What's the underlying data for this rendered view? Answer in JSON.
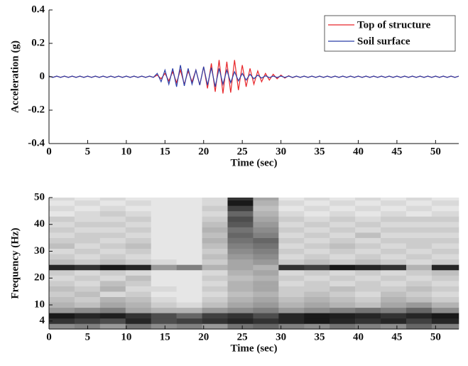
{
  "chart_data": [
    {
      "type": "line",
      "ylabel": "Acceleration (g)",
      "xlabel": "Time (sec)",
      "x": [
        0,
        0.5,
        1,
        1.5,
        2,
        2.5,
        3,
        3.5,
        4,
        4.5,
        5,
        5.5,
        6,
        6.5,
        7,
        7.5,
        8,
        8.5,
        9,
        9.5,
        10,
        10.5,
        11,
        11.5,
        12,
        12.5,
        13,
        13.5,
        14,
        14.5,
        15,
        15.5,
        16,
        16.5,
        17,
        17.5,
        18,
        18.5,
        19,
        19.5,
        20,
        20.5,
        21,
        21.5,
        22,
        22.5,
        23,
        23.5,
        24,
        24.5,
        25,
        25.5,
        26,
        26.5,
        27,
        27.5,
        28,
        28.5,
        29,
        29.5,
        30,
        30.5,
        31,
        31.5,
        32,
        32.5,
        33,
        33.5,
        34,
        34.5,
        35,
        35.5,
        36,
        36.5,
        37,
        37.5,
        38,
        38.5,
        39,
        39.5,
        40,
        40.5,
        41,
        41.5,
        42,
        42.5,
        43,
        43.5,
        44,
        44.5,
        45,
        45.5,
        46,
        46.5,
        47,
        47.5,
        48,
        48.5,
        49,
        49.5,
        50,
        50.5,
        51,
        51.5,
        52,
        52.5,
        53
      ],
      "series": [
        {
          "name": "Top of structure",
          "color": "#e8262a",
          "values": [
            0.003,
            -0.003,
            0.003,
            -0.003,
            0.003,
            -0.003,
            0.003,
            -0.003,
            0.003,
            -0.003,
            0.003,
            -0.003,
            0.003,
            -0.003,
            0.003,
            -0.003,
            0.003,
            -0.003,
            0.003,
            -0.003,
            0.003,
            -0.003,
            0.003,
            -0.003,
            0.003,
            -0.003,
            0.003,
            -0.003,
            0.01,
            -0.012,
            0.02,
            -0.025,
            0.03,
            -0.035,
            0.04,
            -0.045,
            0.035,
            -0.03,
            0.04,
            -0.05,
            0.06,
            -0.07,
            0.08,
            -0.09,
            0.1,
            -0.1,
            0.09,
            -0.095,
            0.1,
            -0.08,
            0.07,
            -0.06,
            0.05,
            -0.045,
            0.035,
            -0.03,
            0.02,
            -0.02,
            0.015,
            -0.012,
            0.01,
            -0.008,
            0.006,
            -0.005,
            0.003,
            -0.003,
            0.003,
            -0.003,
            0.003,
            -0.003,
            0.003,
            -0.003,
            0.003,
            -0.003,
            0.003,
            -0.003,
            0.003,
            -0.003,
            0.003,
            -0.003,
            0.003,
            -0.003,
            0.003,
            -0.003,
            0.003,
            -0.003,
            0.003,
            -0.003,
            0.003,
            -0.003,
            0.003,
            -0.003,
            0.003,
            -0.003,
            0.003,
            -0.003,
            0.003,
            -0.003,
            0.003,
            -0.003,
            0.003,
            -0.003,
            0.003,
            -0.003,
            0.003,
            -0.003,
            0.003
          ]
        },
        {
          "name": "Soil surface",
          "color": "#2b3fa8",
          "values": [
            0.004,
            -0.004,
            0.004,
            -0.004,
            0.004,
            -0.004,
            0.004,
            -0.004,
            0.004,
            -0.004,
            0.004,
            -0.004,
            0.004,
            -0.004,
            0.004,
            -0.004,
            0.004,
            -0.004,
            0.004,
            -0.004,
            0.004,
            -0.004,
            0.004,
            -0.004,
            0.004,
            -0.004,
            0.004,
            -0.004,
            0.02,
            -0.03,
            0.04,
            -0.045,
            0.05,
            -0.06,
            0.07,
            -0.055,
            0.05,
            -0.045,
            0.04,
            -0.05,
            0.06,
            -0.05,
            0.055,
            -0.06,
            0.05,
            -0.045,
            0.04,
            -0.035,
            0.03,
            -0.025,
            0.02,
            -0.02,
            0.015,
            -0.012,
            0.01,
            -0.008,
            0.006,
            -0.005,
            0.004,
            -0.004,
            0.004,
            -0.004,
            0.004,
            -0.004,
            0.004,
            -0.004,
            0.004,
            -0.004,
            0.004,
            -0.004,
            0.004,
            -0.004,
            0.004,
            -0.004,
            0.004,
            -0.004,
            0.004,
            -0.004,
            0.004,
            -0.004,
            0.004,
            -0.004,
            0.004,
            -0.004,
            0.004,
            -0.004,
            0.004,
            -0.004,
            0.004,
            -0.004,
            0.004,
            -0.004,
            0.004,
            -0.004,
            0.004,
            -0.004,
            0.004,
            -0.004,
            0.004,
            -0.004,
            0.004,
            -0.004,
            0.004,
            -0.004,
            0.004,
            -0.004,
            0.004
          ]
        }
      ],
      "xlim": [
        0,
        53
      ],
      "ylim": [
        -0.4,
        0.4
      ],
      "xticks": [
        0,
        5,
        10,
        15,
        20,
        25,
        30,
        35,
        40,
        45,
        50
      ],
      "yticks": [
        -0.4,
        -0.2,
        0,
        0.2,
        0.4
      ],
      "legend": "upper right"
    },
    {
      "type": "heatmap",
      "ylabel": "Frequency (Hz)",
      "xlabel": "Time (sec)",
      "xbins": [
        0,
        3.3,
        6.6,
        9.9,
        13.2,
        16.5,
        19.8,
        23.1,
        26.4,
        29.7,
        33,
        36.3,
        39.6,
        42.9,
        46.2,
        49.5,
        53
      ],
      "ybins": [
        1,
        3,
        5,
        7,
        9,
        11,
        13,
        15,
        17,
        19,
        21,
        23,
        25,
        27,
        29,
        31,
        33,
        35,
        37,
        39,
        41,
        43,
        45,
        47,
        49,
        50
      ],
      "values": [
        [
          45,
          50,
          40,
          55,
          45,
          50,
          40,
          55,
          60,
          50,
          45,
          55,
          50,
          45,
          60,
          50
        ],
        [
          80,
          75,
          70,
          85,
          70,
          75,
          80,
          85,
          80,
          85,
          90,
          85,
          80,
          85,
          75,
          85
        ],
        [
          90,
          85,
          88,
          80,
          70,
          60,
          75,
          80,
          70,
          85,
          90,
          88,
          85,
          80,
          85,
          90
        ],
        [
          40,
          45,
          50,
          35,
          30,
          30,
          40,
          45,
          50,
          40,
          45,
          50,
          55,
          50,
          60,
          45
        ],
        [
          30,
          25,
          35,
          30,
          20,
          15,
          25,
          35,
          40,
          30,
          35,
          30,
          25,
          35,
          40,
          30
        ],
        [
          25,
          20,
          30,
          25,
          15,
          10,
          20,
          30,
          35,
          25,
          30,
          25,
          20,
          30,
          25,
          20
        ],
        [
          20,
          25,
          15,
          20,
          10,
          10,
          15,
          25,
          30,
          20,
          25,
          20,
          15,
          25,
          20,
          15
        ],
        [
          25,
          20,
          30,
          15,
          15,
          10,
          20,
          30,
          35,
          20,
          20,
          25,
          20,
          20,
          25,
          20
        ],
        [
          20,
          15,
          25,
          20,
          10,
          10,
          15,
          30,
          35,
          15,
          20,
          15,
          20,
          15,
          20,
          15
        ],
        [
          15,
          20,
          15,
          25,
          10,
          10,
          20,
          25,
          30,
          20,
          15,
          20,
          15,
          20,
          15,
          20
        ],
        [
          20,
          15,
          20,
          15,
          10,
          10,
          15,
          30,
          35,
          15,
          20,
          15,
          20,
          15,
          20,
          25
        ],
        [
          85,
          80,
          90,
          85,
          40,
          50,
          30,
          35,
          30,
          80,
          75,
          90,
          85,
          80,
          30,
          85
        ],
        [
          25,
          20,
          25,
          20,
          15,
          10,
          20,
          35,
          40,
          20,
          25,
          20,
          25,
          20,
          15,
          20
        ],
        [
          20,
          15,
          20,
          15,
          10,
          10,
          25,
          40,
          45,
          15,
          20,
          15,
          20,
          15,
          20,
          15
        ],
        [
          15,
          20,
          15,
          20,
          10,
          10,
          20,
          45,
          50,
          20,
          15,
          20,
          15,
          20,
          15,
          20
        ],
        [
          25,
          15,
          20,
          25,
          10,
          10,
          25,
          50,
          55,
          15,
          20,
          25,
          20,
          15,
          20,
          15
        ],
        [
          20,
          20,
          15,
          20,
          10,
          10,
          30,
          55,
          60,
          20,
          15,
          20,
          15,
          20,
          20,
          20
        ],
        [
          15,
          20,
          20,
          15,
          10,
          10,
          25,
          60,
          50,
          15,
          20,
          15,
          25,
          15,
          15,
          15
        ],
        [
          20,
          15,
          15,
          20,
          10,
          10,
          30,
          55,
          45,
          20,
          15,
          20,
          15,
          20,
          20,
          20
        ],
        [
          15,
          20,
          20,
          15,
          10,
          10,
          25,
          65,
          40,
          15,
          20,
          15,
          20,
          15,
          15,
          15
        ],
        [
          20,
          15,
          15,
          20,
          10,
          10,
          20,
          70,
          35,
          20,
          15,
          20,
          15,
          20,
          20,
          20
        ],
        [
          10,
          15,
          20,
          15,
          10,
          10,
          15,
          60,
          30,
          15,
          10,
          15,
          10,
          15,
          10,
          15
        ],
        [
          15,
          10,
          15,
          10,
          10,
          10,
          20,
          75,
          25,
          10,
          15,
          10,
          15,
          10,
          15,
          10
        ],
        [
          10,
          15,
          10,
          15,
          10,
          10,
          15,
          90,
          30,
          15,
          10,
          15,
          10,
          15,
          10,
          15
        ],
        [
          15,
          10,
          15,
          10,
          10,
          10,
          15,
          80,
          35,
          10,
          15,
          10,
          15,
          10,
          15,
          10
        ]
      ],
      "colormap": "gray_r",
      "xlim": [
        0,
        53
      ],
      "ylim": [
        1,
        50
      ],
      "xticks": [
        0,
        5,
        10,
        15,
        20,
        25,
        30,
        35,
        40,
        45,
        50
      ],
      "yticks": [
        4,
        10,
        20,
        30,
        40,
        50
      ]
    }
  ]
}
